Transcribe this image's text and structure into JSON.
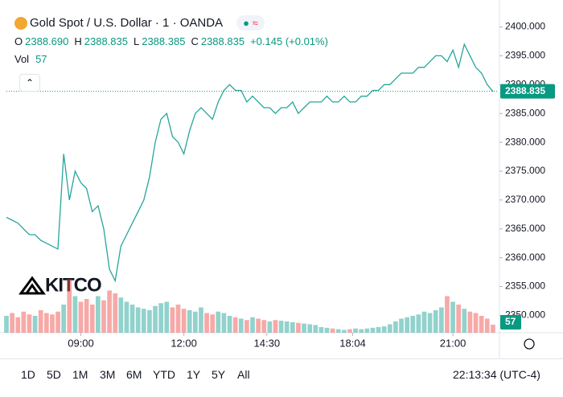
{
  "header": {
    "symbol": "Gold Spot / U.S. Dollar · 1 · OANDA",
    "ohlc": [
      {
        "label": "O",
        "value": "2388.690"
      },
      {
        "label": "H",
        "value": "2388.835"
      },
      {
        "label": "L",
        "value": "2388.385"
      },
      {
        "label": "C",
        "value": "2388.835"
      }
    ],
    "change": "+0.145 (+0.01%)",
    "vol_label": "Vol"
  },
  "watermark": "KITCO",
  "toolbar": {
    "ranges": [
      "1D",
      "5D",
      "1M",
      "3M",
      "6M",
      "YTD",
      "1Y",
      "5Y",
      "All"
    ],
    "clock": "22:13:34 (UTC-4)"
  },
  "chart_data": {
    "type": "line",
    "series": [
      {
        "name": "XAUUSD",
        "color": "#26a69a",
        "values": [
          2367,
          2366.5,
          2366,
          2365,
          2364,
          2364,
          2363,
          2362.5,
          2362,
          2361.5,
          2378,
          2370,
          2375,
          2373,
          2372,
          2368,
          2369,
          2365,
          2358,
          2356,
          2362,
          2364,
          2366,
          2368,
          2370,
          2374,
          2380,
          2384,
          2385,
          2381,
          2380,
          2378,
          2382,
          2385,
          2386,
          2385,
          2384,
          2387,
          2389,
          2390,
          2389,
          2389,
          2387,
          2388,
          2387,
          2386,
          2386,
          2385,
          2386,
          2386,
          2387,
          2385,
          2386,
          2387,
          2387,
          2387,
          2388,
          2387,
          2387,
          2388,
          2387,
          2387,
          2388,
          2388,
          2389,
          2389,
          2390,
          2390,
          2391,
          2392,
          2392,
          2392,
          2393,
          2393,
          2394,
          2395,
          2395,
          2394,
          2396,
          2393,
          2397,
          2395,
          2393,
          2392,
          2390,
          2388.8
        ]
      }
    ],
    "volume": {
      "up_color": "rgba(38,166,154,0.5)",
      "down_color": "rgba(239,83,80,0.5)",
      "vlim": [
        0,
        400
      ],
      "values": [
        120,
        140,
        110,
        150,
        130,
        120,
        160,
        140,
        130,
        150,
        200,
        380,
        260,
        220,
        240,
        200,
        260,
        230,
        300,
        280,
        250,
        220,
        200,
        180,
        170,
        160,
        190,
        210,
        220,
        180,
        200,
        170,
        160,
        150,
        180,
        140,
        130,
        150,
        140,
        120,
        110,
        100,
        90,
        110,
        100,
        90,
        80,
        90,
        85,
        80,
        75,
        70,
        65,
        60,
        55,
        40,
        35,
        30,
        25,
        20,
        25,
        30,
        25,
        30,
        35,
        40,
        45,
        60,
        80,
        100,
        110,
        120,
        130,
        150,
        140,
        160,
        180,
        260,
        220,
        200,
        170,
        150,
        140,
        120,
        100,
        57
      ]
    },
    "last_price": 2388.835,
    "xlim": [
      0,
      86
    ],
    "xticks": [
      {
        "value": 13,
        "label": "09:00"
      },
      {
        "value": 31,
        "label": "12:00"
      },
      {
        "value": 45.5,
        "label": "14:30"
      },
      {
        "value": 60.5,
        "label": "18:04"
      },
      {
        "value": 78,
        "label": "21:00"
      }
    ],
    "ylim": [
      2347,
      2403
    ],
    "yticks": [
      {
        "value": 2350,
        "label": "2350.000"
      },
      {
        "value": 2355,
        "label": "2355.000"
      },
      {
        "value": 2360,
        "label": "2360.000"
      },
      {
        "value": 2365,
        "label": "2365.000"
      },
      {
        "value": 2370,
        "label": "2370.000"
      },
      {
        "value": 2375,
        "label": "2375.000"
      },
      {
        "value": 2380,
        "label": "2380.000"
      },
      {
        "value": 2385,
        "label": "2385.000"
      },
      {
        "value": 2390,
        "label": "2390.000"
      },
      {
        "value": 2395,
        "label": "2395.000"
      },
      {
        "value": 2400,
        "label": "2400.000"
      }
    ],
    "grid": false
  }
}
